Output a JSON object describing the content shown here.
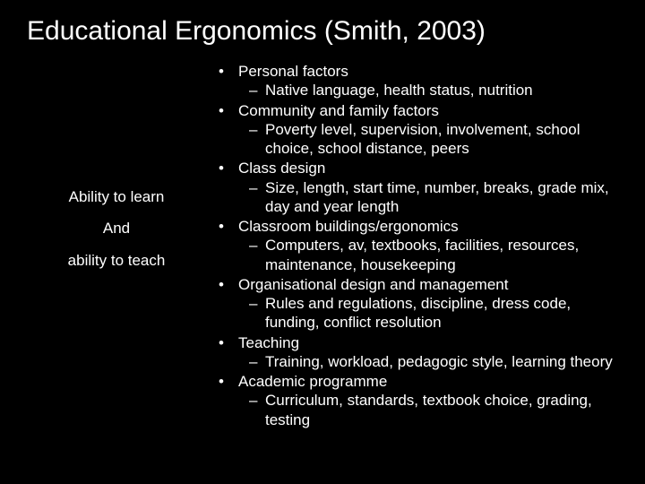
{
  "colors": {
    "background": "#000000",
    "text": "#ffffff"
  },
  "title": "Educational Ergonomics (Smith, 2003)",
  "left": {
    "line1": "Ability to learn",
    "line2": "And",
    "line3": "ability to teach"
  },
  "bullets": [
    {
      "label": "Personal factors",
      "sub": [
        "Native language, health status, nutrition"
      ]
    },
    {
      "label": "Community and family factors",
      "sub": [
        "Poverty level, supervision, involvement, school choice, school distance, peers"
      ]
    },
    {
      "label": "Class design",
      "sub": [
        "Size, length, start time, number, breaks, grade mix, day and year length"
      ]
    },
    {
      "label": "Classroom buildings/ergonomics",
      "sub": [
        "Computers, av, textbooks, facilities, resources, maintenance, housekeeping"
      ]
    },
    {
      "label": "Organisational design and management",
      "sub": [
        "Rules and regulations, discipline, dress code, funding, conflict resolution"
      ]
    },
    {
      "label": "Teaching",
      "sub": [
        "Training, workload, pedagogic style, learning theory"
      ]
    },
    {
      "label": "Academic programme",
      "sub": [
        "Curriculum, standards, textbook choice, grading, testing"
      ]
    }
  ]
}
